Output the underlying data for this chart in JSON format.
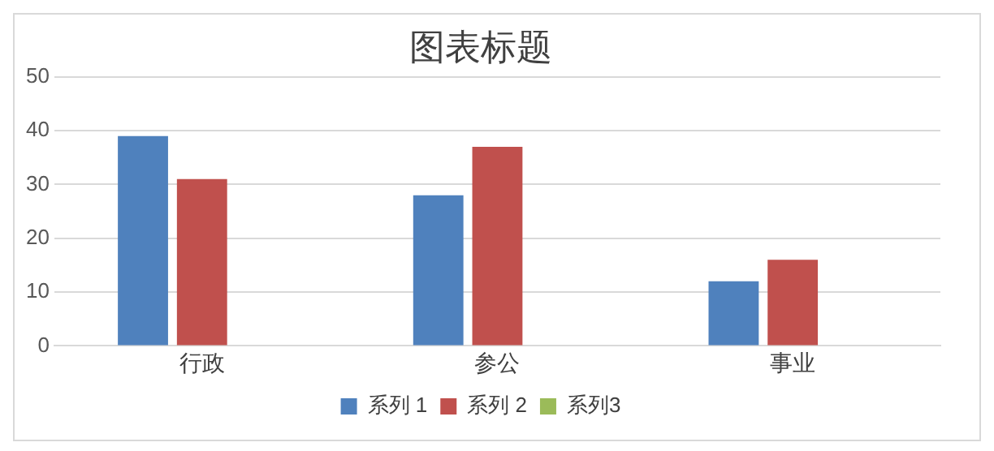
{
  "chart_data": {
    "type": "bar",
    "title": "图表标题",
    "categories": [
      "行政",
      "参公",
      "事业"
    ],
    "series": [
      {
        "name": "系列 1",
        "color": "#4f81bd",
        "values": [
          39,
          28,
          12
        ]
      },
      {
        "name": "系列 2",
        "color": "#c0504d",
        "values": [
          31,
          37,
          16
        ]
      },
      {
        "name": "系列3",
        "color": "#9bbb59",
        "values": [
          null,
          null,
          null
        ]
      }
    ],
    "ylim": [
      0,
      50
    ],
    "yticks": [
      0,
      10,
      20,
      30,
      40,
      50
    ],
    "grid": "y",
    "legend": "bottom"
  }
}
